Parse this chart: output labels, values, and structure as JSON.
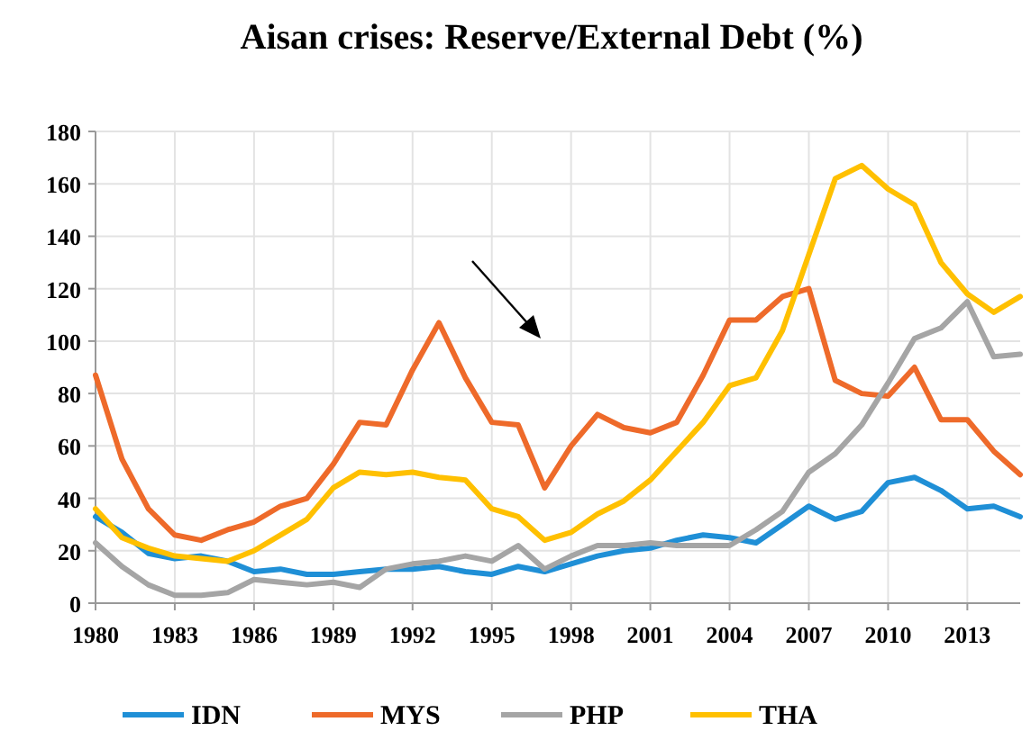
{
  "chart_data": {
    "type": "line",
    "title": "Aisan crises: Reserve/External Debt (%)",
    "x": [
      1980,
      1981,
      1982,
      1983,
      1984,
      1985,
      1986,
      1987,
      1988,
      1989,
      1990,
      1991,
      1992,
      1993,
      1994,
      1995,
      1996,
      1997,
      1998,
      1999,
      2000,
      2001,
      2002,
      2003,
      2004,
      2005,
      2006,
      2007,
      2008,
      2009,
      2010,
      2011,
      2012,
      2013,
      2014,
      2015
    ],
    "series": [
      {
        "name": "IDN",
        "color": "#1f8fd6",
        "values": [
          33,
          27,
          19,
          17,
          18,
          16,
          12,
          13,
          11,
          11,
          12,
          13,
          13,
          14,
          12,
          11,
          14,
          12,
          15,
          18,
          20,
          21,
          24,
          26,
          25,
          23,
          30,
          37,
          32,
          35,
          46,
          48,
          43,
          36,
          37,
          33
        ]
      },
      {
        "name": "MYS",
        "color": "#ee6a2a",
        "values": [
          87,
          55,
          36,
          26,
          24,
          28,
          31,
          37,
          40,
          53,
          69,
          68,
          89,
          107,
          86,
          69,
          68,
          44,
          60,
          72,
          67,
          65,
          69,
          87,
          108,
          108,
          117,
          120,
          85,
          80,
          79,
          90,
          70,
          70,
          58,
          49
        ]
      },
      {
        "name": "PHP",
        "color": "#a5a5a5",
        "values": [
          23,
          14,
          7,
          3,
          3,
          4,
          9,
          8,
          7,
          8,
          6,
          13,
          15,
          16,
          18,
          16,
          22,
          13,
          18,
          22,
          22,
          23,
          22,
          22,
          22,
          28,
          35,
          50,
          57,
          68,
          84,
          101,
          105,
          115,
          94,
          95
        ]
      },
      {
        "name": "THA",
        "color": "#ffc000",
        "values": [
          36,
          25,
          21,
          18,
          17,
          16,
          20,
          26,
          32,
          44,
          50,
          49,
          50,
          48,
          47,
          36,
          33,
          24,
          27,
          34,
          39,
          47,
          58,
          69,
          83,
          86,
          104,
          133,
          162,
          167,
          158,
          152,
          130,
          118,
          111,
          117
        ]
      }
    ],
    "xlim": [
      1980,
      2015
    ],
    "xticks": [
      1980,
      1983,
      1986,
      1989,
      1992,
      1995,
      1998,
      2001,
      2004,
      2007,
      2010,
      2013
    ],
    "ylim": [
      0,
      180
    ],
    "yticks": [
      0,
      20,
      40,
      60,
      80,
      100,
      120,
      140,
      160,
      180
    ],
    "grid": true,
    "legend": "bottom",
    "line_style": "solid"
  }
}
